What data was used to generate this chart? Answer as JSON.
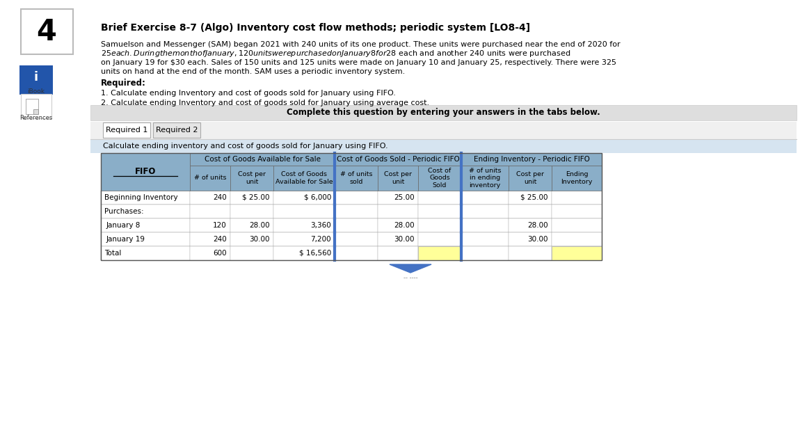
{
  "number": "4",
  "title": "Brief Exercise 8-7 (Algo) Inventory cost flow methods; periodic system [LO8-4]",
  "para_line1": "Samuelson and Messenger (SAM) began 2021 with 240 units of its one product. These units were purchased near the end of 2020 for",
  "para_line2": "$25 each. During the month of January, 120 units were purchased on January 8 for $28 each and another 240 units were purchased",
  "para_line3": "on January 19 for $30 each. Sales of 150 units and 125 units were made on January 10 and January 25, respectively. There were 325",
  "para_line4": "units on hand at the end of the month. SAM uses a periodic inventory system.",
  "required_label": "Required:",
  "req1": "1. Calculate ending Inventory and cost of goods sold for January using FIFO.",
  "req2": "2. Calculate ending Inventory and cost of goods sold for January using average cost.",
  "complete_text": "Complete this question by entering your answers in the tabs below.",
  "tab1": "Required 1",
  "tab2": "Required 2",
  "calc_text": "Calculate ending inventory and cost of goods sold for January using FIFO.",
  "table": {
    "header_group1": "Cost of Goods Available for Sale",
    "header_group2": "Cost of Goods Sold - Periodic FIFO",
    "header_group3": "Ending Inventory - Periodic FIFO",
    "col_headers": [
      "# of units",
      "Cost per\nunit",
      "Cost of Goods\nAvailable for Sale",
      "# of units\nsold",
      "Cost per\nunit",
      "Cost of\nGoods\nSold",
      "# of units\nin ending\ninventory",
      "Cost per\nunit",
      "Ending\nInventory"
    ],
    "fifo_label": "FIFO",
    "rows": [
      {
        "label": "Beginning Inventory",
        "units": "240",
        "cpu": "$ 25.00",
        "cogs_avail": "$ 6,000",
        "units_sold": "",
        "cpu_sold": "25.00",
        "cogs_sold": "",
        "units_end": "",
        "cpu_end": "$ 25.00",
        "end_inv": "",
        "highlight_sold": false,
        "highlight_end": false
      },
      {
        "label": "Purchases:",
        "units": "",
        "cpu": "",
        "cogs_avail": "",
        "units_sold": "",
        "cpu_sold": "",
        "cogs_sold": "",
        "units_end": "",
        "cpu_end": "",
        "end_inv": "",
        "highlight_sold": false,
        "highlight_end": false
      },
      {
        "label": "  January 8",
        "units": "120",
        "cpu": "28.00",
        "cogs_avail": "3,360",
        "units_sold": "",
        "cpu_sold": "28.00",
        "cogs_sold": "",
        "units_end": "",
        "cpu_end": "28.00",
        "end_inv": "",
        "highlight_sold": false,
        "highlight_end": false
      },
      {
        "label": "  January 19",
        "units": "240",
        "cpu": "30.00",
        "cogs_avail": "7,200",
        "units_sold": "",
        "cpu_sold": "30.00",
        "cogs_sold": "",
        "units_end": "",
        "cpu_end": "30.00",
        "end_inv": "",
        "highlight_sold": false,
        "highlight_end": false
      },
      {
        "label": "Total",
        "units": "600",
        "cpu": "",
        "cogs_avail": "$ 16,560",
        "units_sold": "",
        "cpu_sold": "",
        "cogs_sold": "",
        "units_end": "",
        "cpu_end": "",
        "end_inv": "",
        "highlight_sold": true,
        "highlight_end": true
      }
    ],
    "header_bg": "#8AAEC8",
    "highlight_yellow": "#FFFF99",
    "blue_divider": "#4472C4",
    "border_color": "#888888"
  },
  "bg_color": "#FFFFFF",
  "complete_bg": "#DEDEDE",
  "calc_area_bg": "#D6E4F0"
}
